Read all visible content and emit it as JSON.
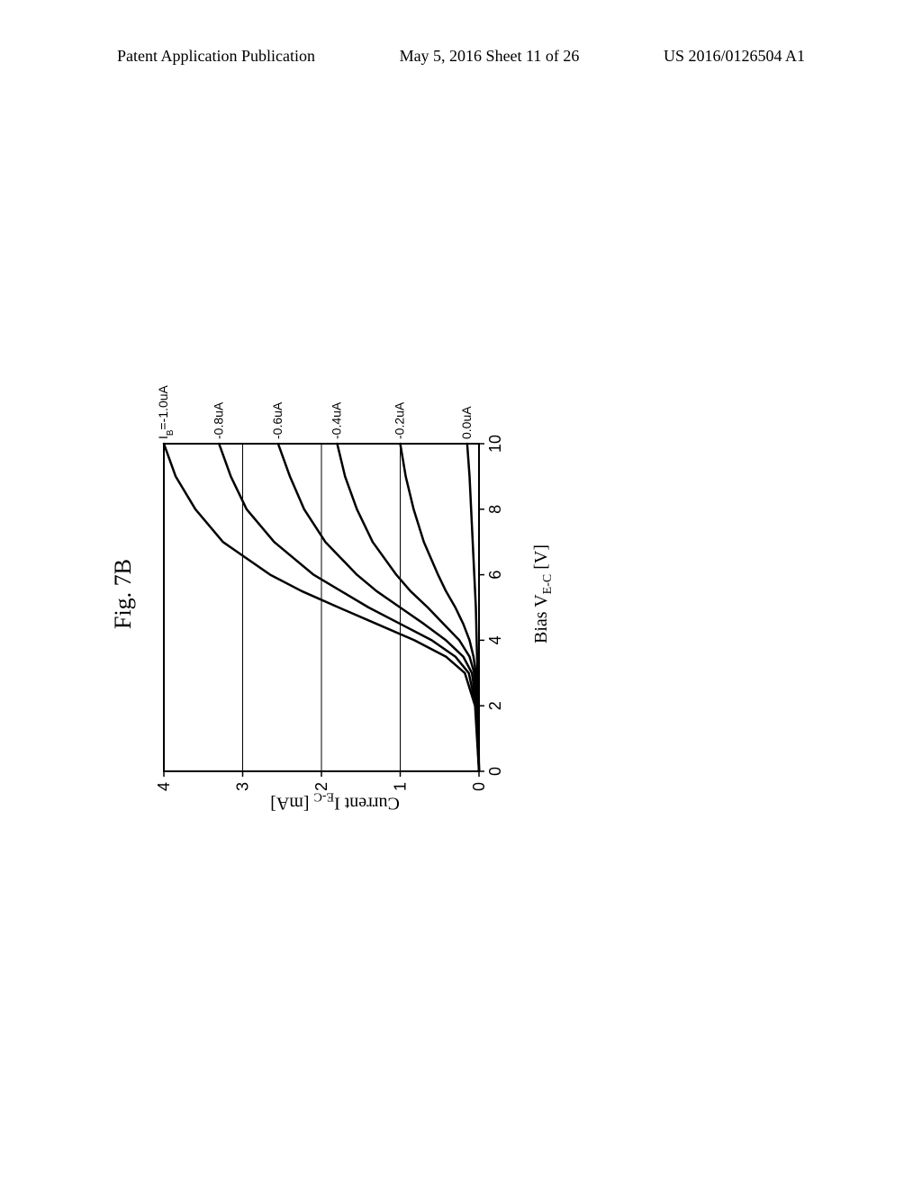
{
  "header": {
    "left": "Patent Application Publication",
    "center": "May 5, 2016  Sheet 11 of 26",
    "right": "US 2016/0126504 A1"
  },
  "figure": {
    "label": "Fig. 7B",
    "type": "line",
    "title_fontsize": 26,
    "xlabel_prefix": "Bias V",
    "xlabel_sub": "E-C",
    "xlabel_suffix": " [V]",
    "ylabel_prefix": "Current  I",
    "ylabel_sub": "E-C",
    "ylabel_suffix": " [mA]",
    "label_fontsize": 20,
    "xlim": [
      0,
      10
    ],
    "ylim": [
      0,
      4
    ],
    "xtick_step": 2,
    "ytick_step": 1,
    "xticks": [
      0,
      2,
      4,
      6,
      8,
      10
    ],
    "yticks": [
      0,
      1,
      2,
      3,
      4
    ],
    "background_color": "#ffffff",
    "grid_color": "#000000",
    "axis_color": "#000000",
    "line_color": "#000000",
    "line_width": 2.5,
    "tick_fontsize": 18,
    "curve_label_fontsize": 14,
    "curve_labels": [
      {
        "text": "0.0uA",
        "end_y": 0.15
      },
      {
        "text": "-0.2uA",
        "end_y": 1.0
      },
      {
        "text": "-0.4uA",
        "end_y": 1.8
      },
      {
        "text": "-0.6uA",
        "end_y": 2.55
      },
      {
        "text": "-0.8uA",
        "end_y": 3.3
      },
      {
        "text_prefix": "I",
        "text_sub": "B",
        "text_suffix": "=-1.0uA",
        "end_y": 4.0
      }
    ],
    "series": [
      {
        "label": "0.0uA",
        "data": [
          [
            0,
            0
          ],
          [
            2,
            0.01
          ],
          [
            3,
            0.02
          ],
          [
            4,
            0.03
          ],
          [
            5,
            0.04
          ],
          [
            6,
            0.06
          ],
          [
            7,
            0.08
          ],
          [
            8,
            0.1
          ],
          [
            9,
            0.12
          ],
          [
            10,
            0.15
          ]
        ]
      },
      {
        "label": "-0.2uA",
        "data": [
          [
            0,
            0
          ],
          [
            2,
            0.02
          ],
          [
            3,
            0.04
          ],
          [
            3.5,
            0.07
          ],
          [
            4,
            0.12
          ],
          [
            4.5,
            0.2
          ],
          [
            5,
            0.3
          ],
          [
            5.5,
            0.42
          ],
          [
            6,
            0.52
          ],
          [
            7,
            0.7
          ],
          [
            8,
            0.83
          ],
          [
            9,
            0.93
          ],
          [
            10,
            1.0
          ]
        ]
      },
      {
        "label": "-0.4uA",
        "data": [
          [
            0,
            0
          ],
          [
            2,
            0.02
          ],
          [
            3,
            0.06
          ],
          [
            3.5,
            0.12
          ],
          [
            4,
            0.25
          ],
          [
            4.5,
            0.45
          ],
          [
            5,
            0.65
          ],
          [
            5.5,
            0.87
          ],
          [
            6,
            1.05
          ],
          [
            7,
            1.35
          ],
          [
            8,
            1.55
          ],
          [
            9,
            1.7
          ],
          [
            10,
            1.8
          ]
        ]
      },
      {
        "label": "-0.6uA",
        "data": [
          [
            0,
            0
          ],
          [
            2,
            0.03
          ],
          [
            3,
            0.09
          ],
          [
            3.5,
            0.2
          ],
          [
            4,
            0.42
          ],
          [
            4.5,
            0.7
          ],
          [
            5,
            1.0
          ],
          [
            5.5,
            1.3
          ],
          [
            6,
            1.55
          ],
          [
            7,
            1.95
          ],
          [
            8,
            2.22
          ],
          [
            9,
            2.4
          ],
          [
            10,
            2.55
          ]
        ]
      },
      {
        "label": "-0.8uA",
        "data": [
          [
            0,
            0
          ],
          [
            2,
            0.04
          ],
          [
            3,
            0.13
          ],
          [
            3.5,
            0.3
          ],
          [
            4,
            0.6
          ],
          [
            4.5,
            1.0
          ],
          [
            5,
            1.4
          ],
          [
            5.5,
            1.75
          ],
          [
            6,
            2.1
          ],
          [
            7,
            2.6
          ],
          [
            8,
            2.95
          ],
          [
            9,
            3.15
          ],
          [
            10,
            3.3
          ]
        ]
      },
      {
        "label": "-1.0uA",
        "data": [
          [
            0,
            0
          ],
          [
            2,
            0.05
          ],
          [
            3,
            0.18
          ],
          [
            3.5,
            0.42
          ],
          [
            4,
            0.82
          ],
          [
            4.5,
            1.3
          ],
          [
            5,
            1.78
          ],
          [
            5.5,
            2.25
          ],
          [
            6,
            2.65
          ],
          [
            7,
            3.25
          ],
          [
            8,
            3.6
          ],
          [
            9,
            3.85
          ],
          [
            10,
            4.0
          ]
        ]
      }
    ]
  }
}
